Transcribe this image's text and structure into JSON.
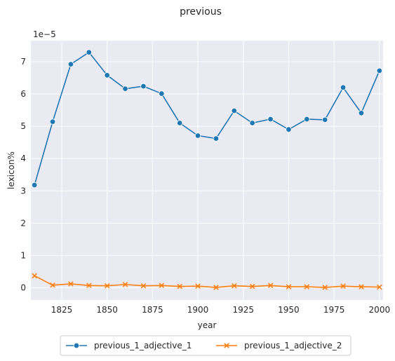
{
  "chart_data": {
    "type": "line",
    "title": "previous",
    "xlabel": "year",
    "ylabel": "lexicon%",
    "y_offset_label": "1e−5",
    "y_scale_exponent": -5,
    "x": [
      1810,
      1820,
      1830,
      1840,
      1850,
      1860,
      1870,
      1880,
      1890,
      1900,
      1910,
      1920,
      1930,
      1940,
      1950,
      1960,
      1970,
      1980,
      1990,
      2000
    ],
    "xlim": [
      1808,
      2002
    ],
    "ylim": [
      -0.38,
      7.65
    ],
    "x_ticks": [
      1825,
      1850,
      1875,
      1900,
      1925,
      1950,
      1975,
      2000
    ],
    "y_ticks": [
      0,
      1,
      2,
      3,
      4,
      5,
      6,
      7
    ],
    "grid": true,
    "legend_position": "bottom-center",
    "series": [
      {
        "name": "previous_1_adjective_1",
        "color": "#1f77b4",
        "marker": "circle",
        "values": [
          3.18,
          5.14,
          6.92,
          7.29,
          6.58,
          6.16,
          6.24,
          6.01,
          5.1,
          4.71,
          4.62,
          5.48,
          5.1,
          5.22,
          4.9,
          5.22,
          5.2,
          6.2,
          5.41,
          6.72
        ]
      },
      {
        "name": "previous_1_adjective_2",
        "color": "#ff7f0e",
        "marker": "x",
        "values": [
          0.37,
          0.08,
          0.12,
          0.07,
          0.06,
          0.1,
          0.06,
          0.07,
          0.04,
          0.05,
          0.01,
          0.06,
          0.04,
          0.07,
          0.03,
          0.03,
          0.01,
          0.05,
          0.03,
          0.02
        ]
      }
    ]
  }
}
